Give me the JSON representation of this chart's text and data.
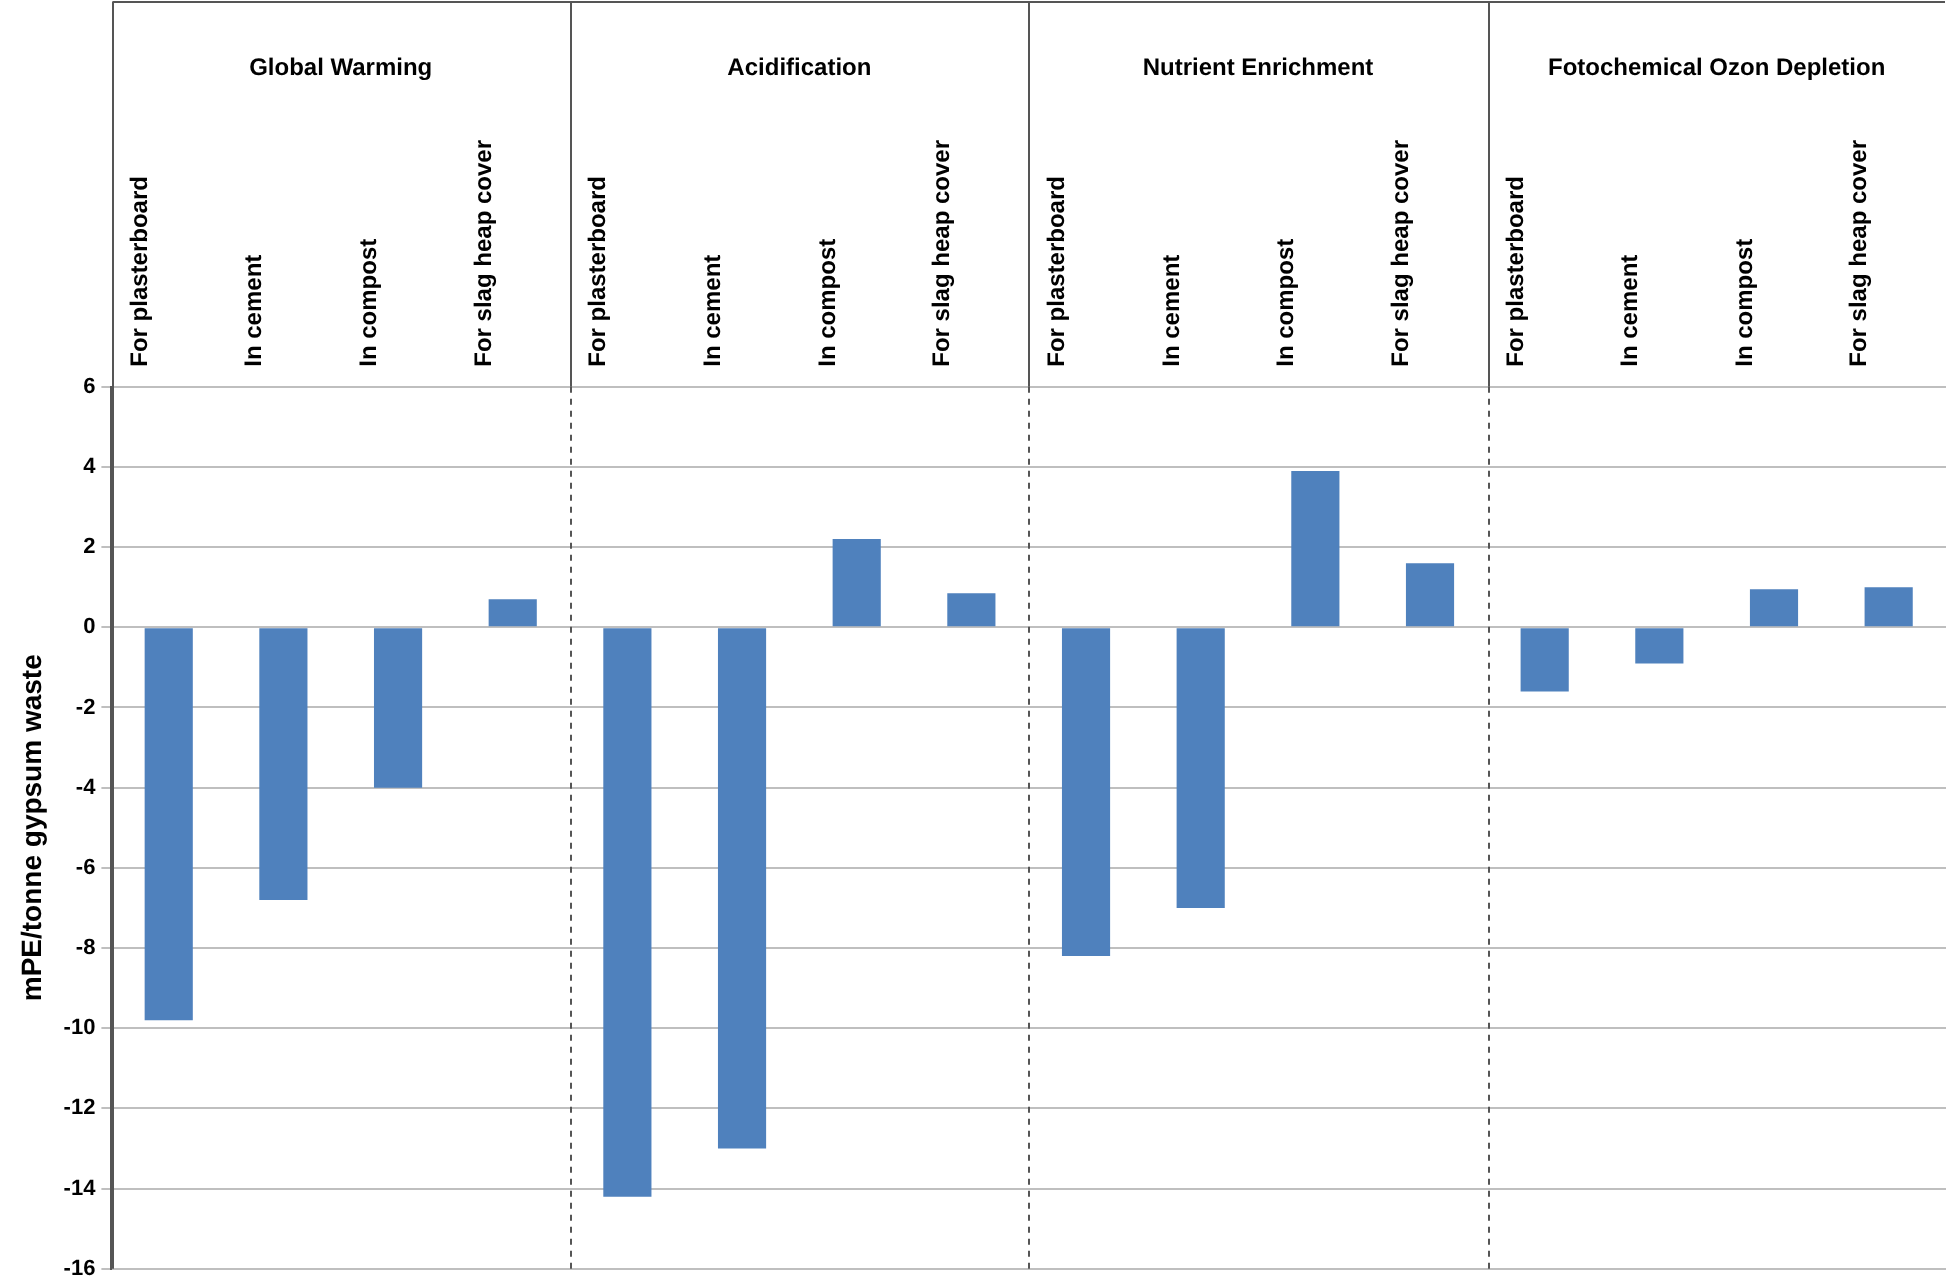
{
  "chart_data": {
    "type": "bar",
    "ylabel": "mPE/tonne gypsum waste",
    "categories": [
      "For plasterboard",
      "In cement",
      "In compost",
      "For slag heap cover",
      "For plasterboard",
      "In cement",
      "In compost",
      "For slag heap cover",
      "For plasterboard",
      "In cement",
      "In compost",
      "For slag heap cover",
      "For plasterboard",
      "In cement",
      "In compost",
      "For slag heap cover"
    ],
    "values": [
      -9.8,
      -6.8,
      -4.0,
      0.7,
      -14.2,
      -13.0,
      2.2,
      0.85,
      -8.2,
      -7.0,
      3.9,
      1.6,
      -1.6,
      -0.9,
      0.95,
      1.0
    ],
    "color": "#4f81bd",
    "annotations": [
      "Global Warming",
      "Acidification",
      "Nutrient Enrichment",
      "Fotochemical Ozon Depletion"
    ],
    "ylim": [
      -16,
      6
    ],
    "yticks": [
      -16,
      -14,
      -12,
      -10,
      -8,
      -6,
      -4,
      -2,
      0,
      2,
      4,
      6
    ],
    "grid": "y",
    "legend": false
  }
}
